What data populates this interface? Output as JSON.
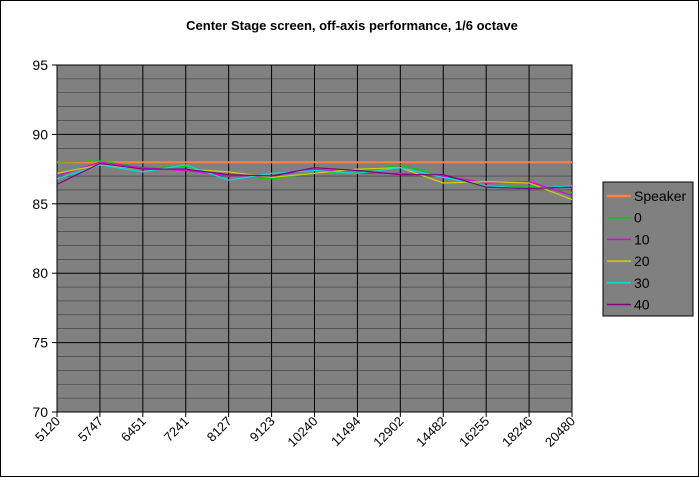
{
  "chart_data": {
    "type": "line",
    "title": "Center Stage screen, off-axis performance, 1/6 octave",
    "xlabel": "",
    "ylabel": "",
    "categories": [
      "5120",
      "5747",
      "6451",
      "7241",
      "8127",
      "9123",
      "10240",
      "11494",
      "12902",
      "14482",
      "16255",
      "18246",
      "20480"
    ],
    "ylim": [
      70,
      95
    ],
    "yticks": [
      70,
      75,
      80,
      85,
      90,
      95
    ],
    "grid": true,
    "legend_position": "right",
    "series": [
      {
        "name": "Speaker",
        "color": "#ff8040",
        "values": [
          88.0,
          88.0,
          88.0,
          88.0,
          88.0,
          88.0,
          88.0,
          88.0,
          88.0,
          88.0,
          88.0,
          88.0,
          88.0
        ]
      },
      {
        "name": "0",
        "color": "#00d000",
        "values": [
          88.0,
          88.1,
          87.6,
          87.7,
          87.0,
          86.8,
          87.2,
          87.3,
          87.8,
          87.0,
          86.2,
          86.3,
          85.8
        ]
      },
      {
        "name": "10",
        "color": "#e000e0",
        "values": [
          87.0,
          88.0,
          87.6,
          87.4,
          87.0,
          87.0,
          87.5,
          87.2,
          87.2,
          87.0,
          86.5,
          86.6,
          85.6
        ]
      },
      {
        "name": "20",
        "color": "#d0d000",
        "values": [
          87.2,
          87.8,
          87.5,
          87.5,
          87.3,
          86.9,
          87.2,
          87.5,
          87.6,
          86.5,
          86.6,
          86.5,
          85.3
        ]
      },
      {
        "name": "30",
        "color": "#00e0e0",
        "values": [
          86.8,
          87.8,
          87.3,
          87.8,
          86.7,
          87.2,
          87.4,
          87.2,
          87.6,
          86.9,
          86.3,
          86.1,
          86.3
        ]
      },
      {
        "name": "40",
        "color": "#800080",
        "values": [
          86.4,
          87.9,
          87.5,
          87.5,
          87.1,
          87.0,
          87.6,
          87.4,
          87.1,
          87.1,
          86.2,
          86.1,
          86.2
        ]
      }
    ]
  }
}
